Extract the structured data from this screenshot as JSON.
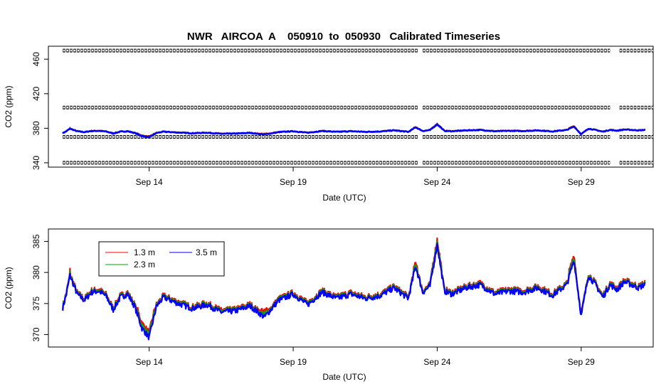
{
  "figure": {
    "title": "NWR   AIRCOA  A    050910  to  050930   Calibrated Timeseries"
  },
  "chart_data": [
    {
      "type": "scatter",
      "panel": "top",
      "title": "NWR   AIRCOA  A    050910  to  050930   Calibrated Timeseries",
      "xlabel": "Date (UTC)",
      "ylabel": "CO2 (ppm)",
      "x_tick_labels": [
        "Sep 14",
        "Sep 19",
        "Sep 24",
        "Sep 29"
      ],
      "x_tick_dates": [
        "2005-09-14",
        "2005-09-19",
        "2005-09-24",
        "2005-09-29"
      ],
      "y_ticks": [
        340,
        380,
        420,
        460
      ],
      "y_tick_labels": [
        "340",
        "380",
        "420",
        "460"
      ],
      "xlim": [
        "2005-09-10T12:00",
        "2005-10-01T12:00"
      ],
      "ylim": [
        335,
        475
      ],
      "grid": false,
      "legend": "none",
      "colors": {
        "reference": "#000000",
        "co2": "#0000ff",
        "red": "#ff0000",
        "green": "#00aa00"
      },
      "reference_series": [
        {
          "level": 470,
          "segments": [
            [
              "2005-09-11T00:00",
              "2005-09-23T08:00"
            ],
            [
              "2005-09-23T12:00",
              "2005-09-30T00:00"
            ],
            [
              "2005-09-30T08:00",
              "2005-10-01T12:00"
            ]
          ]
        },
        {
          "level": 404,
          "segments": [
            [
              "2005-09-11T00:00",
              "2005-09-23T08:00"
            ],
            [
              "2005-09-23T12:00",
              "2005-09-30T00:00"
            ],
            [
              "2005-09-30T08:00",
              "2005-10-01T12:00"
            ]
          ]
        },
        {
          "level": 370,
          "segments": [
            [
              "2005-09-11T00:00",
              "2005-09-23T08:00"
            ],
            [
              "2005-09-23T12:00",
              "2005-09-30T00:00"
            ],
            [
              "2005-09-30T08:00",
              "2005-10-01T12:00"
            ]
          ]
        },
        {
          "level": 340,
          "segments": [
            [
              "2005-09-11T00:00",
              "2005-09-23T08:00"
            ],
            [
              "2005-09-23T12:00",
              "2005-09-30T00:00"
            ],
            [
              "2005-09-30T08:00",
              "2005-10-01T12:00"
            ]
          ]
        }
      ]
    },
    {
      "type": "line",
      "panel": "bottom",
      "xlabel": "Date (UTC)",
      "ylabel": "CO2 (ppm)",
      "x_tick_labels": [
        "Sep 14",
        "Sep 19",
        "Sep 24",
        "Sep 29"
      ],
      "x_tick_dates": [
        "2005-09-14",
        "2005-09-19",
        "2005-09-24",
        "2005-09-29"
      ],
      "y_ticks": [
        370,
        375,
        380,
        385
      ],
      "y_tick_labels": [
        "370",
        "375",
        "380",
        "385"
      ],
      "xlim": [
        "2005-09-10T12:00",
        "2005-10-01T12:00"
      ],
      "ylim": [
        368,
        387
      ],
      "grid": false,
      "legend": "top-left",
      "series": [
        {
          "name": "1.3 m",
          "color": "#ff0000"
        },
        {
          "name": "2.3 m",
          "color": "#00aa00"
        },
        {
          "name": "3.5 m",
          "color": "#0000ff"
        }
      ],
      "x": [
        "2005-09-11T00:00",
        "2005-09-11T03:00",
        "2005-09-11T06:00",
        "2005-09-11T09:00",
        "2005-09-11T12:00",
        "2005-09-11T15:00",
        "2005-09-11T18:00",
        "2005-09-12T00:00",
        "2005-09-12T06:00",
        "2005-09-12T12:00",
        "2005-09-12T18:00",
        "2005-09-13T00:00",
        "2005-09-13T06:00",
        "2005-09-13T12:00",
        "2005-09-13T18:00",
        "2005-09-14T00:00",
        "2005-09-14T06:00",
        "2005-09-14T12:00",
        "2005-09-14T18:00",
        "2005-09-15T00:00",
        "2005-09-15T12:00",
        "2005-09-16T00:00",
        "2005-09-16T12:00",
        "2005-09-17T00:00",
        "2005-09-17T12:00",
        "2005-09-18T00:00",
        "2005-09-18T12:00",
        "2005-09-19T00:00",
        "2005-09-19T12:00",
        "2005-09-20T00:00",
        "2005-09-20T12:00",
        "2005-09-21T00:00",
        "2005-09-21T12:00",
        "2005-09-22T00:00",
        "2005-09-22T12:00",
        "2005-09-23T00:00",
        "2005-09-23T06:00",
        "2005-09-23T12:00",
        "2005-09-23T18:00",
        "2005-09-24T00:00",
        "2005-09-24T06:00",
        "2005-09-24T12:00",
        "2005-09-25T00:00",
        "2005-09-25T12:00",
        "2005-09-26T00:00",
        "2005-09-26T12:00",
        "2005-09-27T00:00",
        "2005-09-27T12:00",
        "2005-09-28T00:00",
        "2005-09-28T12:00",
        "2005-09-28T18:00",
        "2005-09-29T00:00",
        "2005-09-29T06:00",
        "2005-09-29T12:00",
        "2005-09-29T18:00",
        "2005-09-30T00:00",
        "2005-09-30T06:00",
        "2005-09-30T12:00",
        "2005-10-01T00:00",
        "2005-10-01T06:00"
      ],
      "values": [
        374.3,
        376.5,
        379.5,
        378.0,
        376.5,
        376.0,
        375.5,
        376.8,
        377.0,
        376.2,
        374.0,
        376.0,
        376.5,
        374.5,
        371.0,
        369.5,
        374.5,
        376.0,
        375.5,
        375.0,
        374.2,
        374.8,
        373.6,
        373.8,
        374.6,
        372.8,
        375.5,
        376.5,
        374.8,
        376.8,
        375.8,
        376.5,
        375.8,
        376.2,
        377.5,
        375.8,
        381.0,
        376.8,
        377.8,
        384.5,
        377.0,
        376.5,
        377.5,
        378.0,
        376.5,
        377.0,
        376.8,
        377.5,
        376.3,
        378.0,
        382.0,
        373.0,
        379.5,
        378.0,
        376.0,
        378.0,
        377.2,
        378.5,
        377.5,
        378.2
      ]
    }
  ]
}
